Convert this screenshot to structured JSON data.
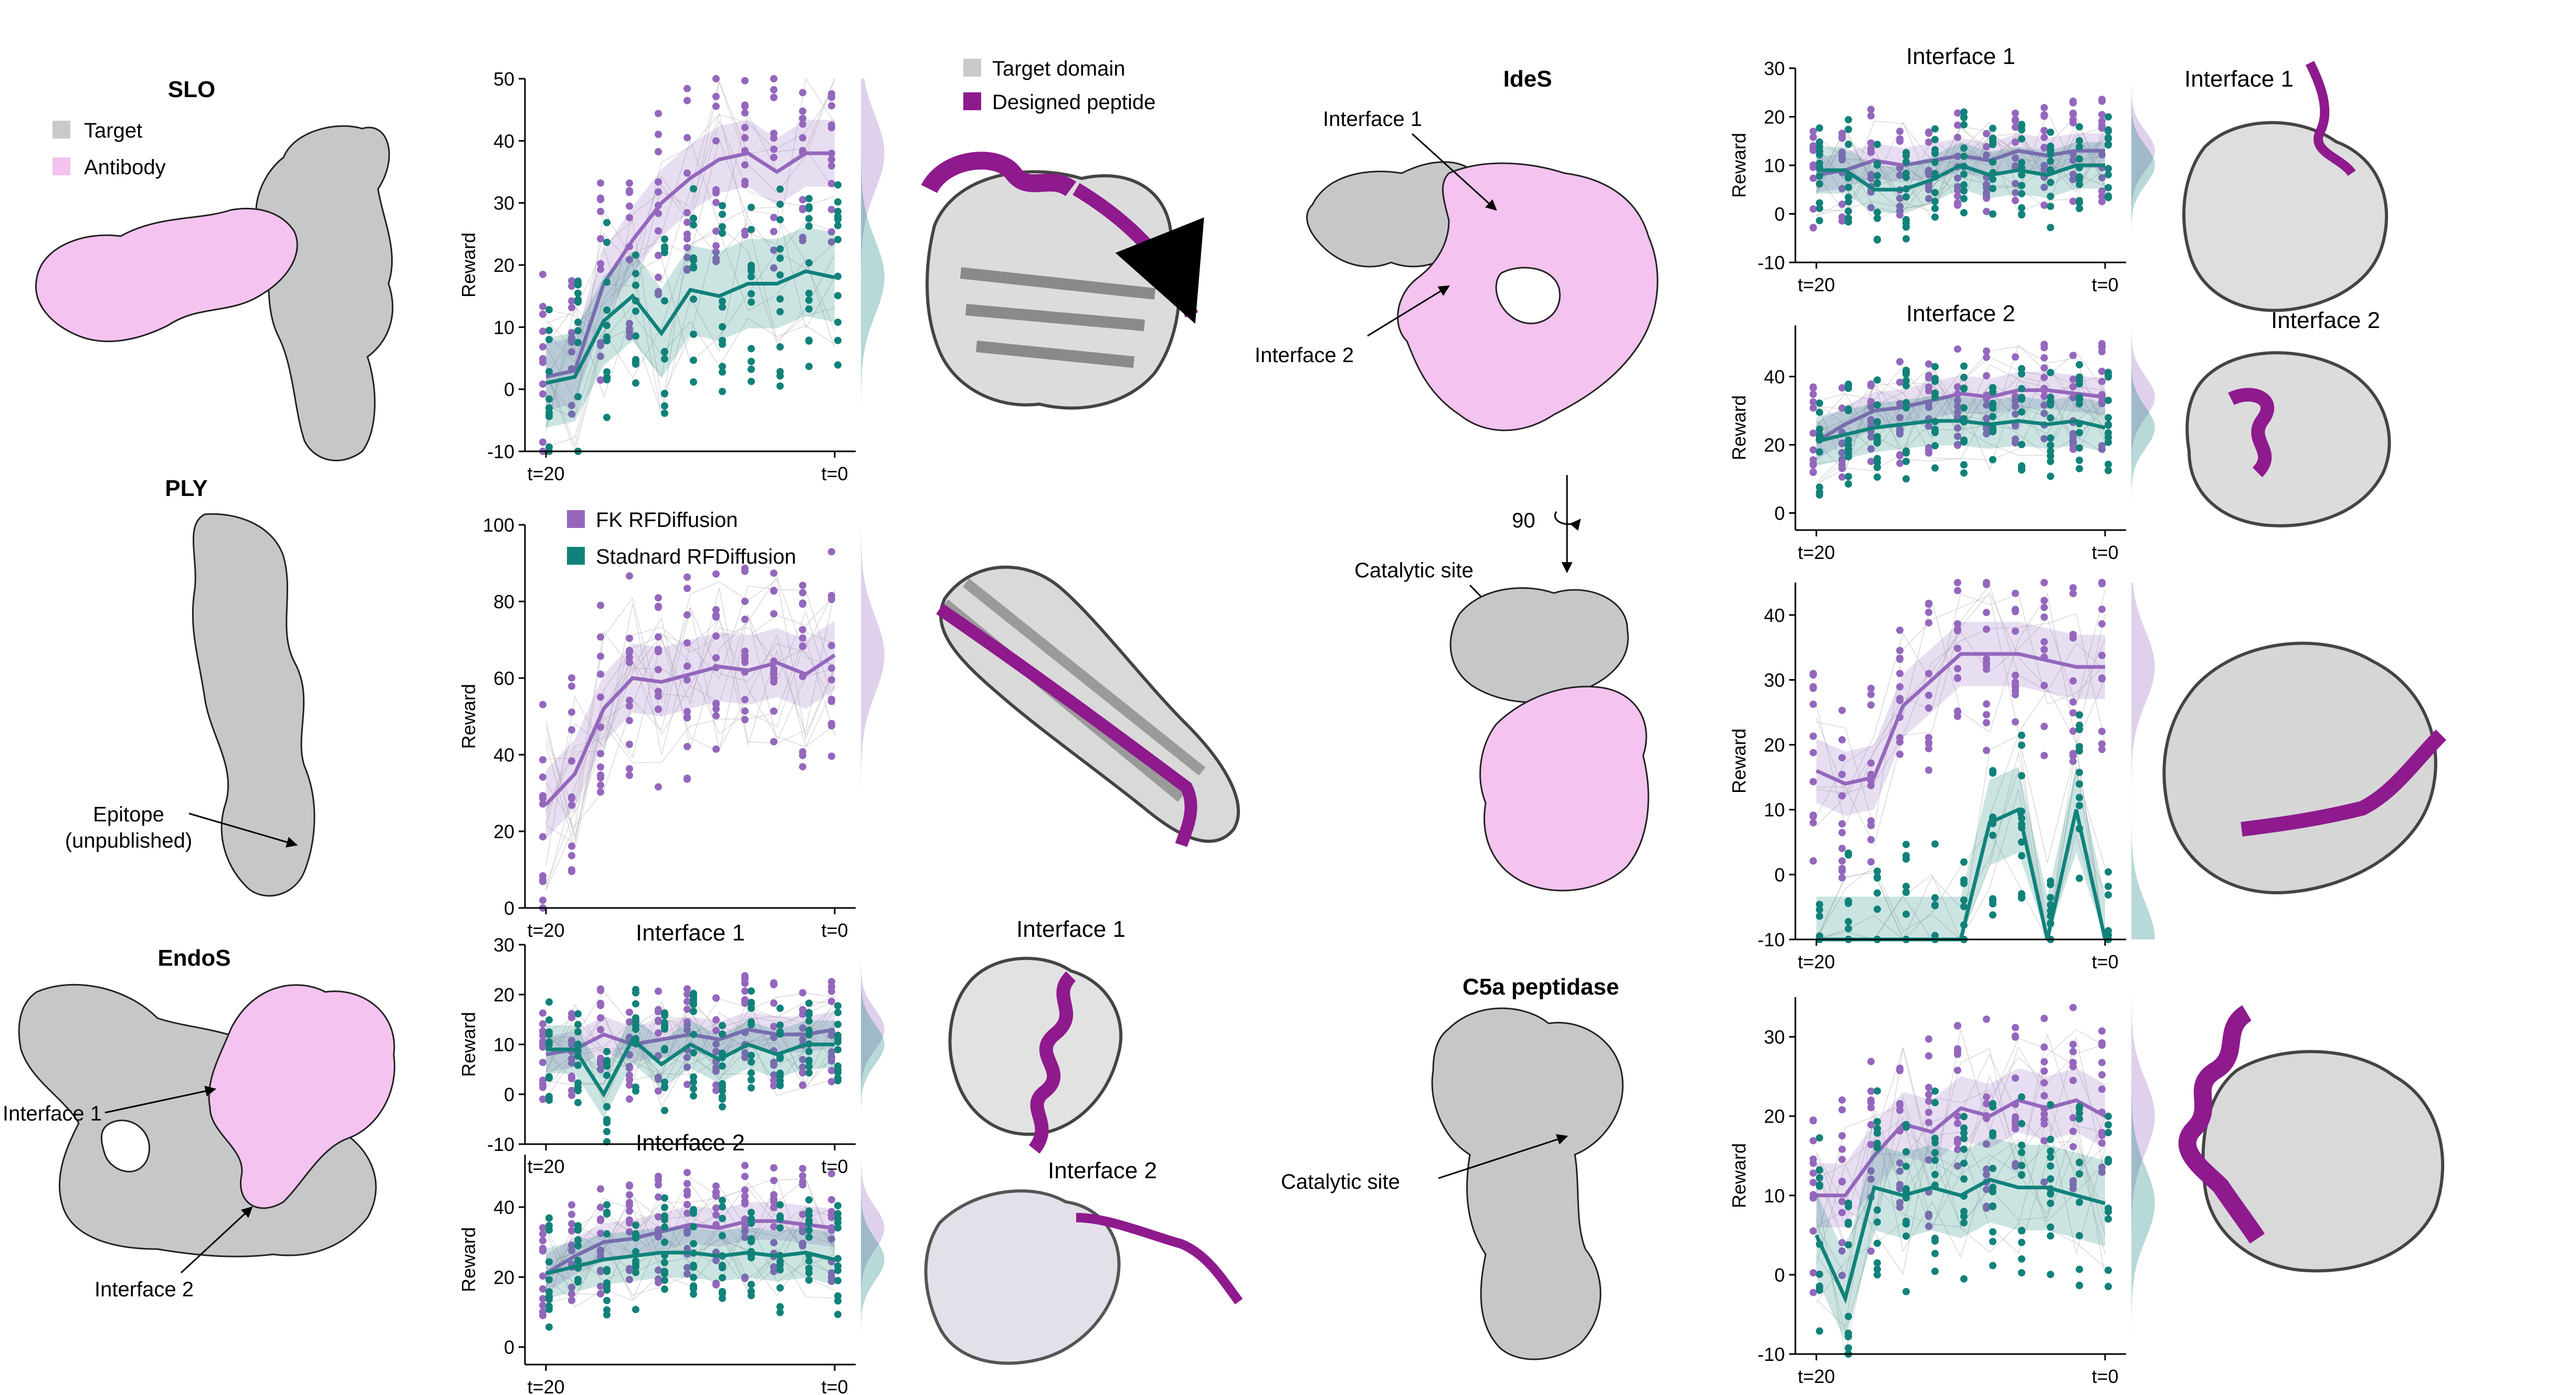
{
  "colors": {
    "fk": "#9467bd",
    "std": "#11827a",
    "target": "#c8c9cb",
    "antibody": "#f3c2ee",
    "peptide": "#8e1a8e"
  },
  "legend_struct": {
    "target_domain": "Target domain",
    "designed_peptide": "Designed peptide"
  },
  "legend_methods": {
    "fk": "FK RFDiffusion",
    "std": "Stadnard RFDiffusion"
  },
  "targets": {
    "slo": {
      "title": "SLO",
      "legend_target": "Target",
      "legend_antibody": "Antibody"
    },
    "ply": {
      "title": "PLY",
      "epitope_line1": "Epitope",
      "epitope_line2": "(unpublished)"
    },
    "endos": {
      "title": "EndoS",
      "interface1": "Interface 1",
      "interface2": "Interface 2"
    },
    "ides": {
      "title": "IdeS",
      "interface1": "Interface 1",
      "interface2": "Interface 2",
      "rotation": "90",
      "catalytic": "Catalytic site"
    },
    "c5a": {
      "title": "C5a peptidase",
      "catalytic": "Catalytic site"
    }
  },
  "structure_labels": {
    "endos_if1": "Interface 1",
    "endos_if2": "Interface 2",
    "ides_if1": "Interface 1",
    "ides_if2": "Interface 2"
  },
  "chart_data": [
    {
      "id": "slo",
      "type": "line",
      "title": "",
      "ylabel": "Reward",
      "xlabel": "",
      "x_start": "t=20",
      "x_end": "t=0",
      "ylim": [
        -10,
        50
      ],
      "yticks": [
        -10,
        0,
        10,
        20,
        30,
        40,
        50
      ],
      "series": [
        {
          "name": "FK RFDiffusion",
          "values": [
            2,
            3,
            17,
            24,
            30,
            34,
            37,
            38,
            35,
            38,
            38
          ]
        },
        {
          "name": "Stadnard RFDiffusion",
          "values": [
            1,
            2,
            11,
            15,
            9,
            16,
            15,
            17,
            17,
            19,
            18
          ]
        }
      ]
    },
    {
      "id": "ply",
      "type": "line",
      "title": "",
      "ylabel": "Reward",
      "xlabel": "",
      "x_start": "t=20",
      "x_end": "t=0",
      "ylim": [
        0,
        100
      ],
      "yticks": [
        0,
        20,
        40,
        60,
        80,
        100
      ],
      "series": [
        {
          "name": "FK RFDiffusion",
          "values": [
            27,
            35,
            52,
            60,
            59,
            61,
            63,
            62,
            64,
            61,
            66
          ]
        }
      ]
    },
    {
      "id": "endos_if1",
      "type": "line",
      "title": "Interface 1",
      "ylabel": "Reward",
      "xlabel": "",
      "x_start": "t=20",
      "x_end": "t=0",
      "ylim": [
        -10,
        30
      ],
      "yticks": [
        -10,
        0,
        10,
        20,
        30
      ],
      "series": [
        {
          "name": "FK RFDiffusion",
          "values": [
            8,
            9,
            12,
            10,
            11,
            12,
            11,
            13,
            12,
            12,
            13
          ]
        },
        {
          "name": "Stadnard RFDiffusion",
          "values": [
            9,
            9,
            0,
            11,
            6,
            10,
            7,
            10,
            8,
            10,
            10
          ]
        }
      ]
    },
    {
      "id": "endos_if2",
      "type": "line",
      "title": "Interface 2",
      "ylabel": "Reward",
      "xlabel": "",
      "x_start": "t=20",
      "x_end": "t=0",
      "ylim": [
        -5,
        55
      ],
      "yticks": [
        0,
        20,
        40
      ],
      "series": [
        {
          "name": "FK RFDiffusion",
          "values": [
            21,
            26,
            30,
            31,
            33,
            35,
            34,
            36,
            36,
            35,
            34
          ]
        },
        {
          "name": "Stadnard RFDiffusion",
          "values": [
            21,
            23,
            25,
            26,
            27,
            27,
            26,
            27,
            26,
            27,
            25
          ]
        }
      ]
    },
    {
      "id": "ides_if1",
      "type": "line",
      "title": "Interface 1",
      "ylabel": "Reward",
      "xlabel": "",
      "x_start": "t=20",
      "x_end": "t=0",
      "ylim": [
        -10,
        30
      ],
      "yticks": [
        -10,
        0,
        10,
        20,
        30
      ],
      "series": [
        {
          "name": "FK RFDiffusion",
          "values": [
            8,
            9,
            11,
            10,
            11,
            12,
            11,
            13,
            12,
            13,
            13
          ]
        },
        {
          "name": "Stadnard RFDiffusion",
          "values": [
            9,
            9,
            5,
            5,
            7,
            10,
            8,
            9,
            8,
            10,
            10
          ]
        }
      ]
    },
    {
      "id": "ides_if2",
      "type": "line",
      "title": "Interface 2",
      "ylabel": "Reward",
      "xlabel": "",
      "x_start": "t=20",
      "x_end": "t=0",
      "ylim": [
        -5,
        55
      ],
      "yticks": [
        0,
        20,
        40
      ],
      "series": [
        {
          "name": "FK RFDiffusion",
          "values": [
            21,
            26,
            30,
            31,
            33,
            35,
            34,
            36,
            36,
            35,
            34
          ]
        },
        {
          "name": "Stadnard RFDiffusion",
          "values": [
            21,
            23,
            25,
            26,
            27,
            27,
            26,
            27,
            26,
            27,
            25
          ]
        }
      ]
    },
    {
      "id": "ides_cat",
      "type": "line",
      "title": "",
      "ylabel": "Reward",
      "xlabel": "",
      "x_start": "t=20",
      "x_end": "t=0",
      "ylim": [
        -10,
        45
      ],
      "yticks": [
        -10,
        0,
        10,
        20,
        30,
        40
      ],
      "series": [
        {
          "name": "FK RFDiffusion",
          "values": [
            16,
            14,
            15,
            26,
            30,
            34,
            34,
            34,
            33,
            32,
            32
          ]
        },
        {
          "name": "Stadnard RFDiffusion",
          "values": [
            -10,
            -10,
            -10,
            -10,
            -10,
            -10,
            8,
            10,
            -10,
            10,
            -10
          ]
        }
      ]
    },
    {
      "id": "c5a",
      "type": "line",
      "title": "",
      "ylabel": "Reward",
      "xlabel": "",
      "x_start": "t=20",
      "x_end": "t=0",
      "ylim": [
        -10,
        35
      ],
      "yticks": [
        -10,
        0,
        10,
        20,
        30
      ],
      "series": [
        {
          "name": "FK RFDiffusion",
          "values": [
            10,
            10,
            15,
            19,
            18,
            21,
            20,
            22,
            21,
            22,
            20
          ]
        },
        {
          "name": "Stadnard RFDiffusion",
          "values": [
            5,
            -3,
            11,
            10,
            11,
            10,
            12,
            11,
            11,
            10,
            9
          ]
        }
      ]
    }
  ]
}
